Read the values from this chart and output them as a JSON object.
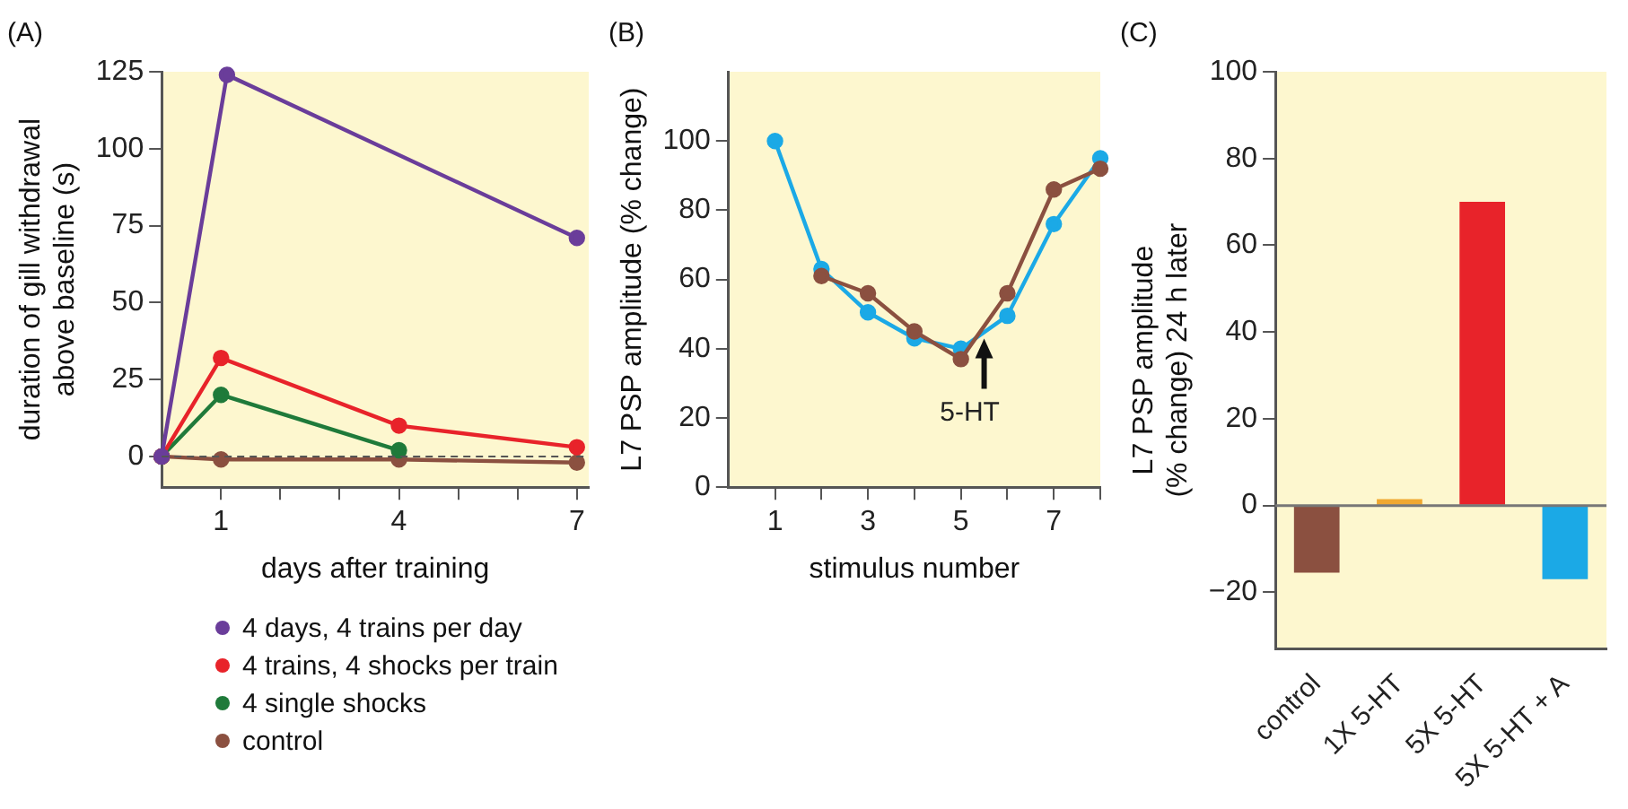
{
  "chart_data": [
    {
      "type": "line",
      "title": "(A)",
      "xlabel": "days after training",
      "ylabel": "duration of gill withdrawal\nabove baseline (s)",
      "xlim": [
        0,
        7.2
      ],
      "xticks": [
        {
          "value": 1,
          "label": "1"
        },
        {
          "value": 2,
          "label": null
        },
        {
          "value": 3,
          "label": null
        },
        {
          "value": 4,
          "label": "4"
        },
        {
          "value": 5,
          "label": null
        },
        {
          "value": 6,
          "label": null
        },
        {
          "value": 7,
          "label": "7"
        }
      ],
      "ylim": [
        -10,
        125
      ],
      "yticks": [
        0,
        25,
        50,
        75,
        100,
        125
      ],
      "marker": "circle",
      "legend": "bottom",
      "ref_lines": [
        {
          "axis": "y",
          "value": 0,
          "line_style": "dashed",
          "color": "#555555"
        }
      ],
      "series": [
        {
          "name": "4 days, 4 trains per day",
          "color": "#6a3d9a",
          "x": [
            0,
            1.1,
            7
          ],
          "values": [
            0,
            124,
            71
          ]
        },
        {
          "name": "4 trains, 4 shocks per train",
          "color": "#e8232a",
          "x": [
            0,
            1,
            4,
            7
          ],
          "values": [
            0,
            32,
            10,
            3
          ]
        },
        {
          "name": "4 single shocks",
          "color": "#1f7a3a",
          "x": [
            0,
            1,
            4
          ],
          "values": [
            0,
            20,
            2
          ]
        },
        {
          "name": "control",
          "color": "#8b5040",
          "x": [
            0,
            1,
            4,
            7
          ],
          "values": [
            0,
            -1,
            -1,
            -2
          ]
        }
      ]
    },
    {
      "type": "line",
      "title": "(B)",
      "xlabel": "stimulus number",
      "ylabel": "L7 PSP amplitude (% change)",
      "xlim": [
        0,
        8
      ],
      "xticks": [
        {
          "value": 1,
          "label": "1"
        },
        {
          "value": 2,
          "label": null
        },
        {
          "value": 3,
          "label": "3"
        },
        {
          "value": 4,
          "label": null
        },
        {
          "value": 5,
          "label": "5"
        },
        {
          "value": 6,
          "label": null
        },
        {
          "value": 7,
          "label": "7"
        },
        {
          "value": 8,
          "label": null
        }
      ],
      "ylim": [
        0,
        120
      ],
      "yticks": [
        0,
        20,
        40,
        60,
        80,
        100
      ],
      "marker": "circle",
      "annotations": [
        {
          "text": "5-HT",
          "x": 5.5,
          "y": 45
        }
      ],
      "series": [
        {
          "color": "#8b5040",
          "x": [
            2,
            3,
            4,
            5,
            6,
            7,
            8
          ],
          "values": [
            61,
            56,
            45,
            37,
            56,
            86,
            92
          ]
        },
        {
          "color": "#1ba9e6",
          "x": [
            1,
            2,
            3,
            4,
            5,
            6,
            7,
            8
          ],
          "values": [
            100,
            63,
            50.5,
            43,
            40,
            49.5,
            76,
            95
          ]
        }
      ]
    },
    {
      "type": "bar",
      "title": "(C)",
      "ylabel": "L7 PSP amplitude\n(% change) 24 h later",
      "categories": [
        "control",
        "1X 5-HT",
        "5X 5-HT",
        "5X 5-HT + A"
      ],
      "values": [
        -15.5,
        1.5,
        70,
        -17
      ],
      "colors": [
        "#8b5040",
        "#f0a830",
        "#e8232a",
        "#1ba9e6"
      ],
      "ylim": [
        -33,
        100
      ],
      "yticks": [
        {
          "value": -20,
          "label": "−20"
        },
        0,
        20,
        40,
        60,
        80,
        100
      ]
    }
  ]
}
